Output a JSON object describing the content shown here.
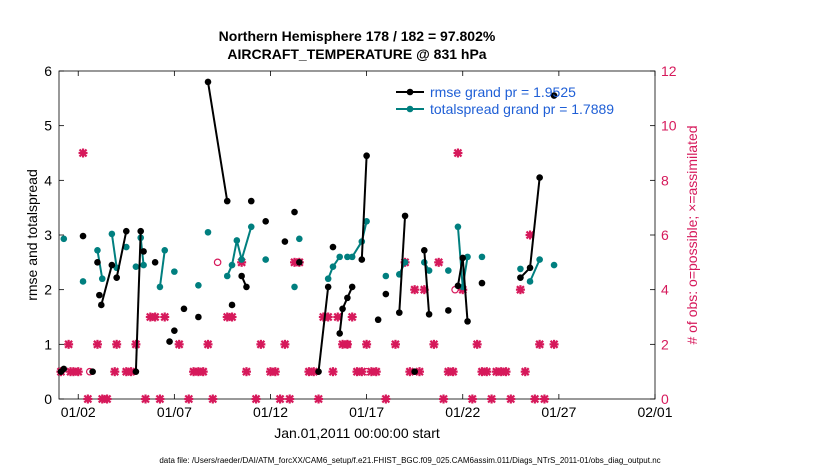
{
  "chart_data": {
    "type": "line",
    "title_line1": "Northern Hemisphere 178 / 182 = 97.802%",
    "title_line2": "AIRCRAFT_TEMPERATURE @ 831 hPa",
    "xlabel": "Jan.01,2011 00:00:00 start",
    "ylabel_left": "rmse and totalspread",
    "ylabel_right": "# of obs: o=possible; ×=assimilated",
    "footer": "data file: /Users/raeder/DAI/ATM_forcXX/CAM6_setup/f.e21.FHIST_BGC.f09_025.CAM6assim.011/Diags_NTrS_2011-01/obs_diag_output.nc",
    "xlim": [
      0,
      31
    ],
    "ylim_left": [
      0,
      6
    ],
    "ylim_right": [
      0,
      12
    ],
    "xticks": [
      {
        "x": 1,
        "label": "01/02"
      },
      {
        "x": 6,
        "label": "01/07"
      },
      {
        "x": 11,
        "label": "01/12"
      },
      {
        "x": 16,
        "label": "01/17"
      },
      {
        "x": 21,
        "label": "01/22"
      },
      {
        "x": 26,
        "label": "01/27"
      },
      {
        "x": 31,
        "label": "02/01"
      }
    ],
    "yticks_left": [
      "0",
      "1",
      "2",
      "3",
      "4",
      "5",
      "6"
    ],
    "yticks_right": [
      "0",
      "2",
      "4",
      "6",
      "8",
      "10",
      "12"
    ],
    "colors": {
      "rmse": "#000000",
      "spread": "#007f7f",
      "obs": "#d6195b",
      "legend_text": "#1f5fd6"
    },
    "series": [
      {
        "name": "rmse",
        "legend": "rmse grand pr = 1.9525",
        "points": [
          [
            0.1,
            0.5
          ],
          [
            0.25,
            0.55
          ],
          [
            1.25,
            2.98
          ],
          [
            1.75,
            0.5
          ],
          [
            2.0,
            2.5
          ],
          [
            2.1,
            1.9
          ],
          [
            2.2,
            1.72
          ],
          [
            2.75,
            2.45
          ],
          [
            3.0,
            2.22
          ],
          [
            3.5,
            3.07
          ],
          [
            4.0,
            0.5
          ],
          [
            4.25,
            3.07
          ],
          [
            4.4,
            2.7
          ],
          [
            5.0,
            2.5
          ],
          [
            5.75,
            1.05
          ],
          [
            6.0,
            1.25
          ],
          [
            6.5,
            1.65
          ],
          [
            7.25,
            1.5
          ],
          [
            7.75,
            5.8
          ],
          [
            8.75,
            3.62
          ],
          [
            9.0,
            1.72
          ],
          [
            9.5,
            2.25
          ],
          [
            9.75,
            2.05
          ],
          [
            10.0,
            3.62
          ],
          [
            10.75,
            3.25
          ],
          [
            11.75,
            2.88
          ],
          [
            12.25,
            3.42
          ],
          [
            12.5,
            2.5
          ],
          [
            13.5,
            0.5
          ],
          [
            14.0,
            2.05
          ],
          [
            14.25,
            2.78
          ],
          [
            14.6,
            1.2
          ],
          [
            14.75,
            1.65
          ],
          [
            15.0,
            1.85
          ],
          [
            15.25,
            2.05
          ],
          [
            15.75,
            2.55
          ],
          [
            16.0,
            4.45
          ],
          [
            16.6,
            1.45
          ],
          [
            17.0,
            1.92
          ],
          [
            17.7,
            1.58
          ],
          [
            18.0,
            3.35
          ],
          [
            18.5,
            0.5
          ],
          [
            19.0,
            2.72
          ],
          [
            19.25,
            1.55
          ],
          [
            20.25,
            1.62
          ],
          [
            20.75,
            2.07
          ],
          [
            21.0,
            2.58
          ],
          [
            21.25,
            1.42
          ],
          [
            22.0,
            2.12
          ],
          [
            24.0,
            2.22
          ],
          [
            24.5,
            2.4
          ],
          [
            25.0,
            4.05
          ],
          [
            25.75,
            5.55
          ]
        ],
        "segments": [
          [
            6,
            7
          ],
          [
            8,
            9
          ],
          [
            10,
            11
          ],
          [
            18,
            19
          ],
          [
            21,
            22
          ],
          [
            28,
            29
          ],
          [
            31,
            32
          ],
          [
            32,
            33
          ],
          [
            33,
            34
          ],
          [
            35,
            36
          ],
          [
            39,
            40
          ],
          [
            42,
            43
          ],
          [
            45,
            46
          ],
          [
            46,
            47
          ],
          [
            49,
            50
          ],
          [
            50,
            51
          ]
        ]
      },
      {
        "name": "totalspread",
        "legend": "totalspread grand pr = 1.7889",
        "points": [
          [
            0.25,
            2.93
          ],
          [
            1.25,
            2.15
          ],
          [
            2.0,
            2.72
          ],
          [
            2.25,
            2.2
          ],
          [
            2.75,
            3.02
          ],
          [
            3.0,
            2.4
          ],
          [
            3.5,
            2.78
          ],
          [
            4.0,
            2.42
          ],
          [
            4.25,
            2.95
          ],
          [
            4.4,
            2.45
          ],
          [
            5.25,
            2.05
          ],
          [
            5.5,
            2.72
          ],
          [
            6.0,
            2.33
          ],
          [
            7.25,
            2.08
          ],
          [
            7.75,
            3.05
          ],
          [
            8.75,
            2.25
          ],
          [
            9.0,
            2.45
          ],
          [
            9.25,
            2.9
          ],
          [
            9.5,
            2.55
          ],
          [
            10.0,
            3.15
          ],
          [
            10.75,
            2.55
          ],
          [
            12.25,
            2.05
          ],
          [
            12.5,
            2.93
          ],
          [
            14.0,
            2.2
          ],
          [
            14.25,
            2.42
          ],
          [
            14.6,
            2.6
          ],
          [
            15.0,
            2.6
          ],
          [
            15.25,
            2.6
          ],
          [
            15.75,
            2.88
          ],
          [
            16.0,
            3.25
          ],
          [
            17.0,
            2.25
          ],
          [
            17.7,
            2.28
          ],
          [
            18.0,
            2.5
          ],
          [
            19.0,
            2.5
          ],
          [
            19.25,
            2.35
          ],
          [
            20.25,
            2.35
          ],
          [
            20.75,
            3.15
          ],
          [
            21.0,
            2.05
          ],
          [
            21.25,
            2.6
          ],
          [
            22.0,
            2.6
          ],
          [
            24.0,
            2.38
          ],
          [
            24.5,
            2.15
          ],
          [
            25.0,
            2.55
          ],
          [
            25.75,
            2.45
          ]
        ],
        "segments": [
          [
            2,
            3
          ],
          [
            4,
            5
          ],
          [
            8,
            9
          ],
          [
            10,
            11
          ],
          [
            15,
            16
          ],
          [
            16,
            17
          ],
          [
            17,
            18
          ],
          [
            18,
            19
          ],
          [
            23,
            24
          ],
          [
            24,
            25
          ],
          [
            27,
            28
          ],
          [
            28,
            29
          ],
          [
            31,
            32
          ],
          [
            33,
            34
          ],
          [
            36,
            37
          ],
          [
            37,
            38
          ],
          [
            41,
            42
          ]
        ]
      },
      {
        "name": "obs_assimilated",
        "points": [
          [
            0.1,
            1
          ],
          [
            0.5,
            2
          ],
          [
            0.6,
            1
          ],
          [
            0.75,
            1
          ],
          [
            1.0,
            1
          ],
          [
            1.25,
            9
          ],
          [
            1.5,
            0
          ],
          [
            2.0,
            2
          ],
          [
            2.25,
            0
          ],
          [
            2.5,
            0
          ],
          [
            2.9,
            1
          ],
          [
            3.0,
            2
          ],
          [
            3.5,
            1
          ],
          [
            3.75,
            1
          ],
          [
            4.0,
            2
          ],
          [
            4.5,
            0
          ],
          [
            4.75,
            3
          ],
          [
            5.0,
            3
          ],
          [
            5.25,
            0
          ],
          [
            5.5,
            3
          ],
          [
            6.25,
            2
          ],
          [
            6.75,
            0
          ],
          [
            7.0,
            1
          ],
          [
            7.25,
            1
          ],
          [
            7.5,
            1
          ],
          [
            7.75,
            2
          ],
          [
            8.0,
            0
          ],
          [
            8.75,
            3
          ],
          [
            9.0,
            3
          ],
          [
            9.5,
            5
          ],
          [
            9.75,
            1
          ],
          [
            10.25,
            0
          ],
          [
            10.5,
            2
          ],
          [
            11.0,
            1
          ],
          [
            11.25,
            1
          ],
          [
            11.5,
            0
          ],
          [
            11.75,
            2
          ],
          [
            12.0,
            0
          ],
          [
            12.25,
            5
          ],
          [
            12.5,
            5
          ],
          [
            13.0,
            1
          ],
          [
            13.25,
            1
          ],
          [
            13.5,
            0
          ],
          [
            13.75,
            3
          ],
          [
            14.0,
            3
          ],
          [
            14.25,
            1
          ],
          [
            14.5,
            3
          ],
          [
            14.75,
            2
          ],
          [
            15.0,
            2
          ],
          [
            15.25,
            3
          ],
          [
            15.5,
            1
          ],
          [
            15.75,
            1
          ],
          [
            16.0,
            2
          ],
          [
            16.25,
            1
          ],
          [
            16.5,
            1
          ],
          [
            17.0,
            0
          ],
          [
            17.5,
            2
          ],
          [
            18.0,
            5
          ],
          [
            18.25,
            1
          ],
          [
            18.5,
            4
          ],
          [
            18.75,
            1
          ],
          [
            19.0,
            4
          ],
          [
            19.5,
            2
          ],
          [
            19.75,
            5
          ],
          [
            20.0,
            0
          ],
          [
            20.25,
            1
          ],
          [
            20.5,
            1
          ],
          [
            20.75,
            9
          ],
          [
            21.0,
            4
          ],
          [
            21.5,
            0
          ],
          [
            21.75,
            2
          ],
          [
            22.0,
            1
          ],
          [
            22.25,
            1
          ],
          [
            22.5,
            0
          ],
          [
            22.75,
            1
          ],
          [
            23.0,
            1
          ],
          [
            23.25,
            1
          ],
          [
            23.5,
            0
          ],
          [
            24.0,
            4
          ],
          [
            24.25,
            1
          ],
          [
            24.5,
            6
          ],
          [
            24.75,
            0
          ],
          [
            25.0,
            2
          ],
          [
            25.25,
            0
          ],
          [
            25.75,
            2
          ]
        ]
      },
      {
        "name": "obs_possible",
        "points": [
          [
            1.6,
            1
          ],
          [
            8.25,
            5
          ],
          [
            15.0,
            2
          ],
          [
            20.6,
            4
          ],
          [
            16.0,
            1
          ]
        ]
      }
    ]
  }
}
